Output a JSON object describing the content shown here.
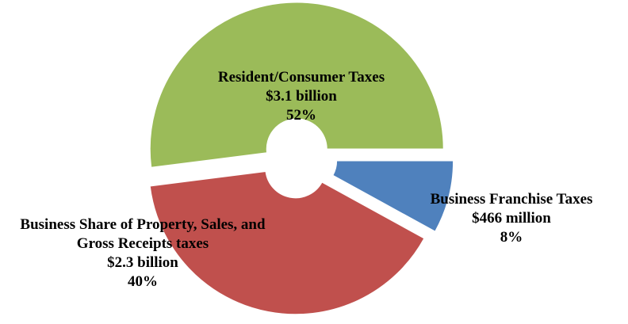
{
  "chart_data": {
    "type": "doughnut",
    "categories": [
      "Business Franchise Taxes",
      "Business Share of Property, Sales, and Gross Receipts taxes",
      "Resident/Consumer Taxes"
    ],
    "values": [
      8,
      40,
      52
    ],
    "value_labels": [
      "8%",
      "40%",
      "52%"
    ],
    "amounts": [
      "$466 million",
      "$2.3 billion",
      "$3.1 billion"
    ],
    "colors": [
      "#4f81bd",
      "#c0504d",
      "#9bbb59"
    ]
  }
}
